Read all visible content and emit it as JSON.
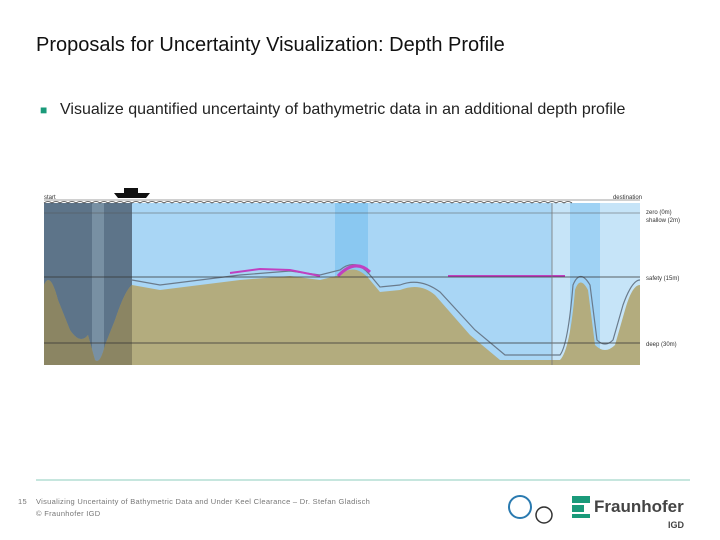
{
  "header": {
    "title": "Proposals for Uncertainty Visualization: Depth Profile"
  },
  "body": {
    "bullets": [
      "Visualize quantified uncertainty of bathymetric data in an additional depth profile"
    ]
  },
  "diagram": {
    "start": "start",
    "destination": "destination",
    "levels": [
      "zero (0m)",
      "shallow (2m)",
      "safety (15m)",
      "deep (30m)"
    ]
  },
  "footer": {
    "page": "15",
    "lines": [
      "Visualizing Uncertainty of Bathymetric Data and Under Keel Clearance – Dr. Stefan Gladisch",
      "© Fraunhofer IGD"
    ],
    "logo": "Fraunhofer",
    "logo_sub": "IGD"
  }
}
